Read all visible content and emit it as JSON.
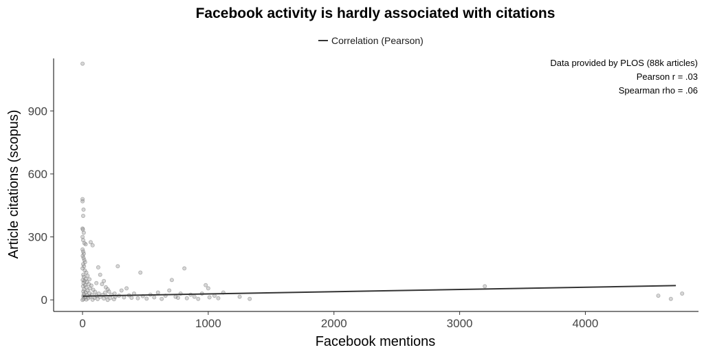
{
  "chart_data": {
    "type": "scatter",
    "title": "Facebook activity is hardly associated with citations",
    "xlabel": "Facebook mentions",
    "ylabel": "Article citations (scopus)",
    "xlim": [
      -230,
      4900
    ],
    "ylim": [
      -55,
      1150
    ],
    "x_ticks": [
      0,
      1000,
      2000,
      3000,
      4000
    ],
    "x_tick_labels": [
      "0",
      "1000",
      "2000",
      "3000",
      "4000"
    ],
    "y_ticks": [
      0,
      300,
      600,
      900
    ],
    "y_tick_labels": [
      "0",
      "300",
      "600",
      "900"
    ],
    "legend": {
      "position": "top",
      "entries": [
        {
          "label": "Correlation (Pearson)",
          "color": "#333333"
        }
      ]
    },
    "annotations": [
      "Data provided by PLOS (88k articles)",
      "Pearson r = .03",
      "Spearman rho = .06"
    ],
    "trend_line": {
      "x": [
        0,
        4720
      ],
      "y": [
        18,
        68
      ]
    },
    "point_color": "#8c8c8c",
    "grid": false,
    "series": [
      {
        "values": [
          {
            "x": 0,
            "y": 1125
          },
          {
            "x": 0,
            "y": 480
          },
          {
            "x": 0,
            "y": 470
          },
          {
            "x": 8,
            "y": 430
          },
          {
            "x": 5,
            "y": 400
          },
          {
            "x": 0,
            "y": 340
          },
          {
            "x": 3,
            "y": 335
          },
          {
            "x": 10,
            "y": 320
          },
          {
            "x": 0,
            "y": 300
          },
          {
            "x": 5,
            "y": 285
          },
          {
            "x": 15,
            "y": 270
          },
          {
            "x": 25,
            "y": 265
          },
          {
            "x": 65,
            "y": 275
          },
          {
            "x": 80,
            "y": 260
          },
          {
            "x": 0,
            "y": 240
          },
          {
            "x": 5,
            "y": 230
          },
          {
            "x": 10,
            "y": 220
          },
          {
            "x": 2,
            "y": 210
          },
          {
            "x": 8,
            "y": 200
          },
          {
            "x": 14,
            "y": 190
          },
          {
            "x": 20,
            "y": 180
          },
          {
            "x": 5,
            "y": 170
          },
          {
            "x": 12,
            "y": 160
          },
          {
            "x": 0,
            "y": 150
          },
          {
            "x": 18,
            "y": 140
          },
          {
            "x": 30,
            "y": 130
          },
          {
            "x": 6,
            "y": 120
          },
          {
            "x": 40,
            "y": 115
          },
          {
            "x": 10,
            "y": 110
          },
          {
            "x": 25,
            "y": 100
          },
          {
            "x": 55,
            "y": 98
          },
          {
            "x": 2,
            "y": 95
          },
          {
            "x": 15,
            "y": 90
          },
          {
            "x": 35,
            "y": 85
          },
          {
            "x": 8,
            "y": 80
          },
          {
            "x": 50,
            "y": 75
          },
          {
            "x": 20,
            "y": 70
          },
          {
            "x": 70,
            "y": 68
          },
          {
            "x": 4,
            "y": 65
          },
          {
            "x": 30,
            "y": 60
          },
          {
            "x": 60,
            "y": 55
          },
          {
            "x": 12,
            "y": 50
          },
          {
            "x": 85,
            "y": 48
          },
          {
            "x": 40,
            "y": 45
          },
          {
            "x": 6,
            "y": 40
          },
          {
            "x": 100,
            "y": 38
          },
          {
            "x": 25,
            "y": 35
          },
          {
            "x": 55,
            "y": 32
          },
          {
            "x": 130,
            "y": 30
          },
          {
            "x": 10,
            "y": 28
          },
          {
            "x": 75,
            "y": 25
          },
          {
            "x": 160,
            "y": 24
          },
          {
            "x": 35,
            "y": 22
          },
          {
            "x": 110,
            "y": 20
          },
          {
            "x": 5,
            "y": 18
          },
          {
            "x": 190,
            "y": 16
          },
          {
            "x": 60,
            "y": 15
          },
          {
            "x": 140,
            "y": 14
          },
          {
            "x": 22,
            "y": 12
          },
          {
            "x": 95,
            "y": 10
          },
          {
            "x": 220,
            "y": 9
          },
          {
            "x": 45,
            "y": 8
          },
          {
            "x": 170,
            "y": 7
          },
          {
            "x": 8,
            "y": 5
          },
          {
            "x": 120,
            "y": 4
          },
          {
            "x": 250,
            "y": 3
          },
          {
            "x": 30,
            "y": 2
          },
          {
            "x": 80,
            "y": 1
          },
          {
            "x": 0,
            "y": 0
          },
          {
            "x": 200,
            "y": 0
          },
          {
            "x": 125,
            "y": 155
          },
          {
            "x": 110,
            "y": 80
          },
          {
            "x": 140,
            "y": 120
          },
          {
            "x": 155,
            "y": 75
          },
          {
            "x": 170,
            "y": 90
          },
          {
            "x": 185,
            "y": 60
          },
          {
            "x": 200,
            "y": 50
          },
          {
            "x": 180,
            "y": 35
          },
          {
            "x": 210,
            "y": 40
          },
          {
            "x": 230,
            "y": 25
          },
          {
            "x": 255,
            "y": 30
          },
          {
            "x": 280,
            "y": 160
          },
          {
            "x": 260,
            "y": 15
          },
          {
            "x": 290,
            "y": 20
          },
          {
            "x": 310,
            "y": 45
          },
          {
            "x": 330,
            "y": 12
          },
          {
            "x": 350,
            "y": 55
          },
          {
            "x": 370,
            "y": 22
          },
          {
            "x": 390,
            "y": 10
          },
          {
            "x": 410,
            "y": 30
          },
          {
            "x": 440,
            "y": 8
          },
          {
            "x": 460,
            "y": 130
          },
          {
            "x": 480,
            "y": 18
          },
          {
            "x": 510,
            "y": 6
          },
          {
            "x": 540,
            "y": 25
          },
          {
            "x": 570,
            "y": 12
          },
          {
            "x": 600,
            "y": 35
          },
          {
            "x": 630,
            "y": 5
          },
          {
            "x": 660,
            "y": 20
          },
          {
            "x": 690,
            "y": 45
          },
          {
            "x": 710,
            "y": 95
          },
          {
            "x": 740,
            "y": 15
          },
          {
            "x": 760,
            "y": 10
          },
          {
            "x": 780,
            "y": 30
          },
          {
            "x": 810,
            "y": 150
          },
          {
            "x": 830,
            "y": 8
          },
          {
            "x": 860,
            "y": 25
          },
          {
            "x": 890,
            "y": 15
          },
          {
            "x": 920,
            "y": 5
          },
          {
            "x": 950,
            "y": 30
          },
          {
            "x": 980,
            "y": 70
          },
          {
            "x": 1000,
            "y": 55
          },
          {
            "x": 1010,
            "y": 12
          },
          {
            "x": 1050,
            "y": 20
          },
          {
            "x": 1080,
            "y": 8
          },
          {
            "x": 1120,
            "y": 35
          },
          {
            "x": 1250,
            "y": 15
          },
          {
            "x": 1330,
            "y": 5
          },
          {
            "x": 3200,
            "y": 65
          },
          {
            "x": 4580,
            "y": 20
          },
          {
            "x": 4680,
            "y": 5
          },
          {
            "x": 4770,
            "y": 30
          }
        ]
      }
    ]
  }
}
